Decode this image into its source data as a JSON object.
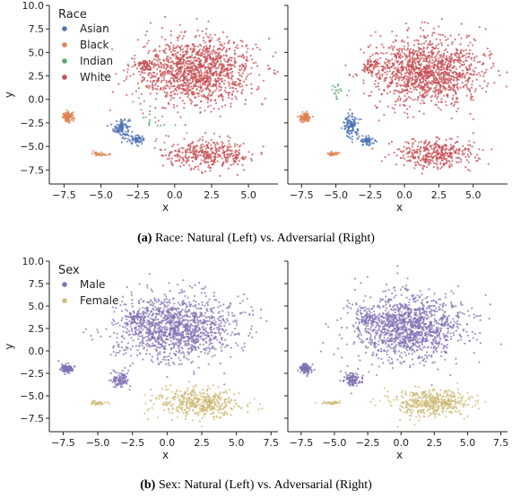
{
  "captions": [
    {
      "tag": "(a)",
      "text": " Race: Natural (Left) vs. Adversarial (Right)"
    },
    {
      "tag": "(b)",
      "text": " Sex: Natural (Left) vs. Adversarial (Right)"
    }
  ],
  "chart_data": [
    {
      "type": "scatter",
      "panel": "race-natural",
      "xlabel": "x",
      "ylabel": "y",
      "xlim": [
        -8.5,
        7.0
      ],
      "ylim": [
        -9.0,
        10.0
      ],
      "xticks": [
        -7.5,
        -5.0,
        -2.5,
        0.0,
        2.5,
        5.0
      ],
      "xtick_labels": [
        "−7.5",
        "−5.0",
        "−2.5",
        "0.0",
        "2.5",
        "5.0"
      ],
      "yticks": [
        10.0,
        7.5,
        5.0,
        2.5,
        0.0,
        -2.5,
        -5.0,
        -7.5
      ],
      "ytick_labels": [
        "10.0",
        "7.5",
        "5.0",
        "2.5",
        "0.0",
        "−2.5",
        "−5.0",
        "−7.5"
      ],
      "legend": {
        "title": "Race",
        "position": "top-left"
      },
      "series": [
        {
          "name": "Asian",
          "color": "#4c72b0",
          "clusters": [
            [
              -3.6,
              -3.0,
              0.5,
              1.0,
              110
            ],
            [
              -2.6,
              -4.3,
              0.5,
              0.4,
              60
            ]
          ]
        },
        {
          "name": "Black",
          "color": "#dd8452",
          "clusters": [
            [
              -7.2,
              -1.9,
              0.35,
              0.45,
              110
            ],
            [
              -5.0,
              -5.8,
              0.5,
              0.2,
              30
            ]
          ]
        },
        {
          "name": "Indian",
          "color": "#55a868",
          "clusters": [
            [
              -1.5,
              -1.8,
              1.4,
              1.8,
              22
            ]
          ]
        },
        {
          "name": "White",
          "color": "#c44e52",
          "clusters": [
            [
              1.5,
              3.0,
              3.6,
              3.2,
              1300
            ],
            [
              2.2,
              -5.8,
              2.7,
              1.4,
              380
            ],
            [
              -2.0,
              3.6,
              0.7,
              0.6,
              60
            ]
          ]
        }
      ]
    },
    {
      "type": "scatter",
      "panel": "race-adversarial",
      "xlabel": "x",
      "ylabel": "",
      "xlim": [
        -8.5,
        7.5
      ],
      "ylim": [
        -9.0,
        10.0
      ],
      "xticks": [
        -7.5,
        -5.0,
        -2.5,
        0.0,
        2.5,
        5.0
      ],
      "xtick_labels": [
        "−7.5",
        "−5.0",
        "−2.5",
        "0.0",
        "2.5",
        "5.0"
      ],
      "series": [
        {
          "name": "Asian",
          "color": "#4c72b0",
          "clusters": [
            [
              -3.9,
              -2.8,
              0.5,
              1.2,
              120
            ],
            [
              -2.7,
              -4.4,
              0.5,
              0.4,
              60
            ]
          ]
        },
        {
          "name": "Black",
          "color": "#dd8452",
          "clusters": [
            [
              -7.2,
              -1.9,
              0.35,
              0.45,
              110
            ],
            [
              -5.2,
              -5.8,
              0.5,
              0.2,
              30
            ]
          ]
        },
        {
          "name": "Indian",
          "color": "#55a868",
          "clusters": [
            [
              -4.8,
              1.2,
              0.5,
              0.8,
              18
            ]
          ]
        },
        {
          "name": "White",
          "color": "#c44e52",
          "clusters": [
            [
              1.5,
              3.0,
              3.6,
              3.2,
              1300
            ],
            [
              2.2,
              -5.8,
              2.7,
              1.4,
              380
            ],
            [
              -2.5,
              3.6,
              0.7,
              0.6,
              60
            ]
          ]
        }
      ]
    },
    {
      "type": "scatter",
      "panel": "sex-natural",
      "xlabel": "x",
      "ylabel": "y",
      "xlim": [
        -8.5,
        8.0
      ],
      "ylim": [
        -9.0,
        10.0
      ],
      "xticks": [
        -7.5,
        -5.0,
        -2.5,
        0.0,
        2.5,
        5.0,
        7.5
      ],
      "xtick_labels": [
        "−7.5",
        "−5.0",
        "−2.5",
        "0.0",
        "2.5",
        "5.0",
        "7.5"
      ],
      "yticks": [
        10.0,
        7.5,
        5.0,
        2.5,
        0.0,
        -2.5,
        -5.0,
        -7.5
      ],
      "ytick_labels": [
        "10.0",
        "7.5",
        "5.0",
        "2.5",
        "0.0",
        "−2.5",
        "−5.0",
        "−7.5"
      ],
      "legend": {
        "title": "Sex",
        "position": "top-left"
      },
      "series": [
        {
          "name": "Male",
          "color": "#8172b3",
          "clusters": [
            [
              0.5,
              2.6,
              3.8,
              3.3,
              1300
            ],
            [
              -7.2,
              -2.0,
              0.4,
              0.5,
              110
            ],
            [
              -3.4,
              -3.2,
              0.6,
              0.8,
              110
            ],
            [
              -2.4,
              3.6,
              0.7,
              0.6,
              60
            ]
          ]
        },
        {
          "name": "Female",
          "color": "#ccb974",
          "clusters": [
            [
              2.3,
              -5.8,
              2.6,
              1.4,
              450
            ],
            [
              -5.0,
              -5.8,
              0.6,
              0.2,
              30
            ]
          ]
        }
      ]
    },
    {
      "type": "scatter",
      "panel": "sex-adversarial",
      "xlabel": "x",
      "ylabel": "",
      "xlim": [
        -8.5,
        8.0
      ],
      "ylim": [
        -9.0,
        10.0
      ],
      "xticks": [
        -7.5,
        -5.0,
        -2.5,
        0.0,
        2.5,
        5.0,
        7.5
      ],
      "xtick_labels": [
        "−7.5",
        "−5.0",
        "−2.5",
        "0.0",
        "2.5",
        "5.0",
        "7.5"
      ],
      "series": [
        {
          "name": "Male",
          "color": "#8172b3",
          "clusters": [
            [
              0.5,
              2.6,
              3.8,
              3.3,
              1300
            ],
            [
              -7.2,
              -2.0,
              0.4,
              0.5,
              110
            ],
            [
              -3.6,
              -3.2,
              0.6,
              0.8,
              110
            ],
            [
              -2.5,
              3.6,
              0.7,
              0.6,
              60
            ]
          ]
        },
        {
          "name": "Female",
          "color": "#ccb974",
          "clusters": [
            [
              2.3,
              -5.8,
              2.6,
              1.4,
              450
            ],
            [
              -5.2,
              -5.8,
              0.6,
              0.2,
              30
            ]
          ]
        }
      ]
    }
  ]
}
